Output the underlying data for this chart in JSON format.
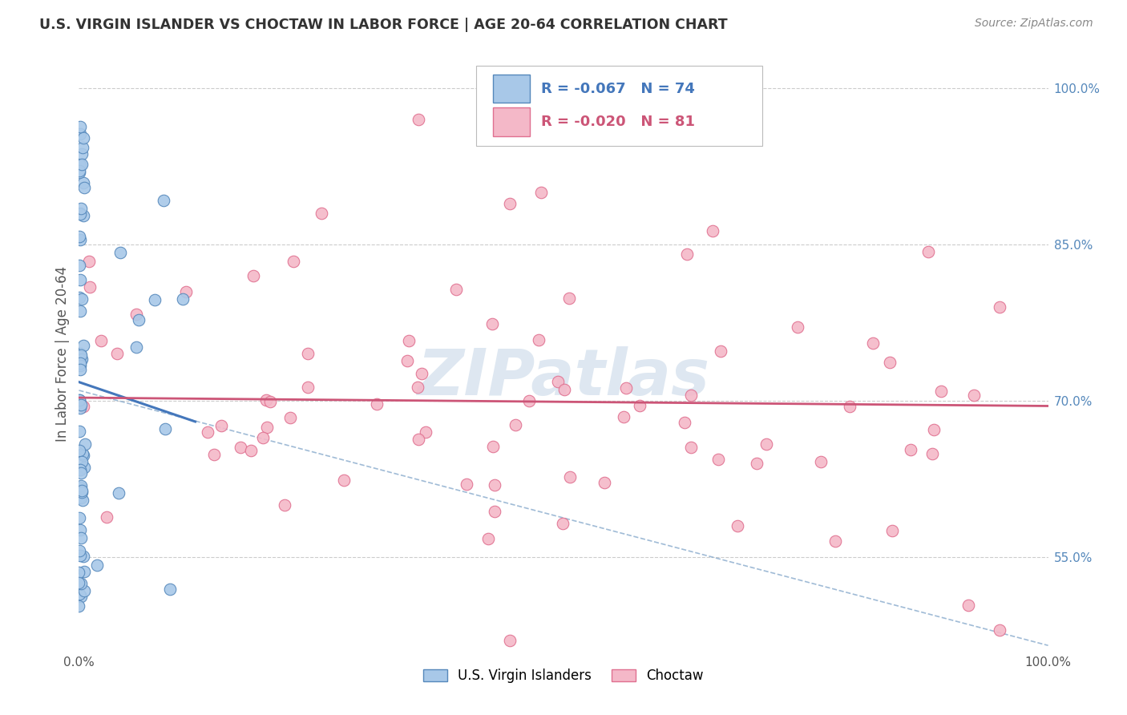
{
  "title": "U.S. VIRGIN ISLANDER VS CHOCTAW IN LABOR FORCE | AGE 20-64 CORRELATION CHART",
  "source": "Source: ZipAtlas.com",
  "ylabel": "In Labor Force | Age 20-64",
  "watermark": "ZIPatlas",
  "legend_blue_r": "R = -0.067",
  "legend_blue_n": "N = 74",
  "legend_pink_r": "R = -0.020",
  "legend_pink_n": "N = 81",
  "legend_label_blue": "U.S. Virgin Islanders",
  "legend_label_pink": "Choctaw",
  "xlim": [
    0.0,
    1.0
  ],
  "ylim": [
    0.46,
    1.03
  ],
  "yticks": [
    0.55,
    0.7,
    0.85,
    1.0
  ],
  "ytick_labels": [
    "55.0%",
    "70.0%",
    "85.0%",
    "100.0%"
  ],
  "xticks": [
    0.0,
    0.25,
    0.5,
    0.75,
    1.0
  ],
  "xtick_labels": [
    "0.0%",
    "",
    "",
    "",
    "100.0%"
  ],
  "blue_color": "#a8c8e8",
  "pink_color": "#f4b8c8",
  "blue_edge": "#5588bb",
  "pink_edge": "#e07090",
  "blue_trend_x": [
    0.0,
    0.12
  ],
  "blue_trend_y": [
    0.718,
    0.68
  ],
  "pink_trend_x": [
    0.0,
    1.0
  ],
  "pink_trend_y": [
    0.703,
    0.695
  ],
  "gray_trend_x": [
    0.0,
    1.0
  ],
  "gray_trend_y": [
    0.71,
    0.465
  ],
  "background_color": "#ffffff",
  "grid_color": "#cccccc",
  "title_color": "#333333",
  "axis_label_color": "#555555",
  "source_color": "#888888",
  "watermark_color": "#c8d8e8",
  "right_tick_color": "#5588bb"
}
